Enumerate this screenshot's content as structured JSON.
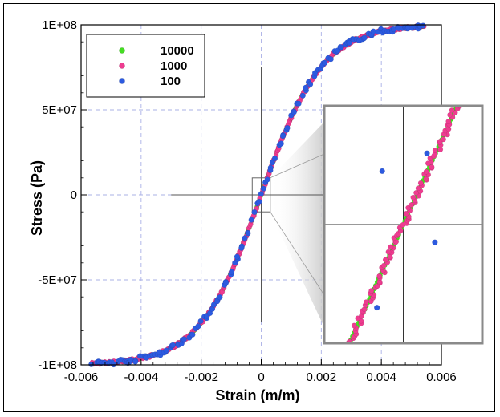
{
  "chart_data": {
    "type": "scatter",
    "title": "",
    "xlabel": "Strain (m/m)",
    "ylabel": "Stress (Pa)",
    "xlim": [
      -0.006,
      0.006
    ],
    "ylim": [
      -100000000,
      100000000
    ],
    "x_ticks": [
      -0.006,
      -0.004,
      -0.002,
      0,
      0.002,
      0.004,
      0.006
    ],
    "x_tick_labels": [
      "-0.006",
      "-0.004",
      "-0.002",
      "0",
      "0.002",
      "0.004",
      "0.006"
    ],
    "y_ticks": [
      -100000000,
      -50000000,
      0,
      50000000,
      100000000
    ],
    "y_tick_labels": [
      "-1E+08",
      "-5E+07",
      "0",
      "5E+07",
      "1E+08"
    ],
    "grid": true,
    "legend_position": "top-left",
    "series": [
      {
        "name": "10000",
        "color": "#44dd22",
        "marker": "circle"
      },
      {
        "name": "1000",
        "color": "#ee3c90",
        "marker": "circle"
      },
      {
        "name": "100",
        "color": "#2c5ae0",
        "marker": "circle"
      }
    ],
    "curve_model": {
      "saturation_stress": 100000000,
      "strain_scale": 0.00204,
      "strain_range": [
        -0.0056,
        0.0054
      ]
    },
    "inset": {
      "shown": true,
      "source_xlim": [
        -0.0003,
        0.0003
      ],
      "source_ylim": [
        -10000000,
        10000000
      ],
      "outlier_points": [
        {
          "x": 9e-05,
          "y": 6000000
        },
        {
          "x": -8e-05,
          "y": 4500000
        },
        {
          "x": 0.00012,
          "y": -1500000
        },
        {
          "x": -0.0001,
          "y": -7000000
        }
      ]
    },
    "annotations": {
      "crosshair_x": [
        -0.003,
        0.003
      ],
      "crosshair_y": [
        -75000000,
        75000000
      ]
    }
  }
}
